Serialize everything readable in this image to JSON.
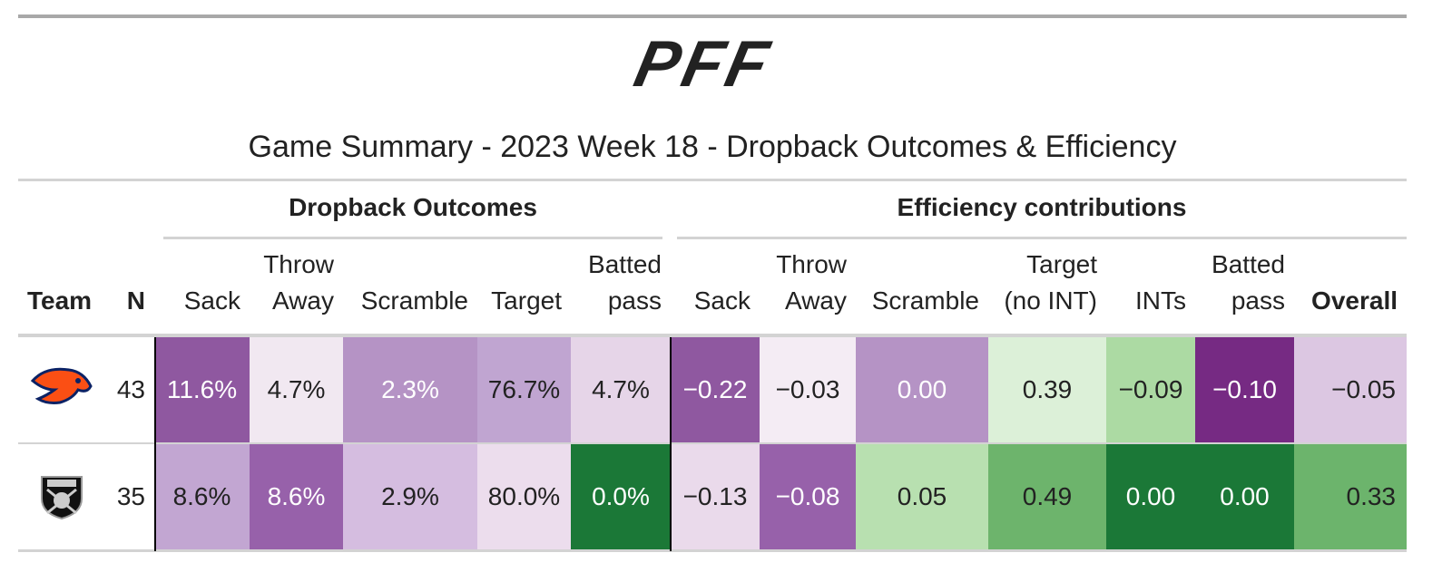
{
  "logo": "PFF",
  "title": "Game Summary - 2023 Week 18 - Dropback Outcomes & Efficiency",
  "spanners": [
    "Dropback Outcomes",
    "Efficiency contributions"
  ],
  "columns": [
    "Team",
    "N",
    "Sack",
    "Throw Away",
    "Scramble",
    "Target",
    "Batted pass",
    "Sack",
    "Throw Away",
    "Scramble",
    "Target (no INT)",
    "INTs",
    "Batted pass",
    "Overall"
  ],
  "rows": [
    {
      "n": 43,
      "cells": [
        "11.6%",
        "4.7%",
        "2.3%",
        "76.7%",
        "4.7%",
        "−0.22",
        "−0.03",
        "0.00",
        "0.39",
        "−0.09",
        "−0.10",
        "−0.05"
      ],
      "colors": [
        "#8f58a0",
        "#f1e8f1",
        "#b593c5",
        "#c0a5d1",
        "#e6d5e8",
        "#8f58a0",
        "#f4ecf4",
        "#b593c5",
        "#dcf0d8",
        "#acdaa3",
        "#762a83",
        "#dcc7e2"
      ]
    },
    {
      "n": 35,
      "cells": [
        "8.6%",
        "8.6%",
        "2.9%",
        "80.0%",
        "0.0%",
        "−0.13",
        "−0.08",
        "0.05",
        "0.49",
        "0.00",
        "0.00",
        "0.33"
      ],
      "colors": [
        "#c2a6d2",
        "#9761aa",
        "#d5bde0",
        "#ecdded",
        "#1b7837",
        "#eadaeb",
        "#9761aa",
        "#b8e0b0",
        "#6db46c",
        "#1b7837",
        "#1b7837",
        "#6cb46c"
      ]
    }
  ]
}
